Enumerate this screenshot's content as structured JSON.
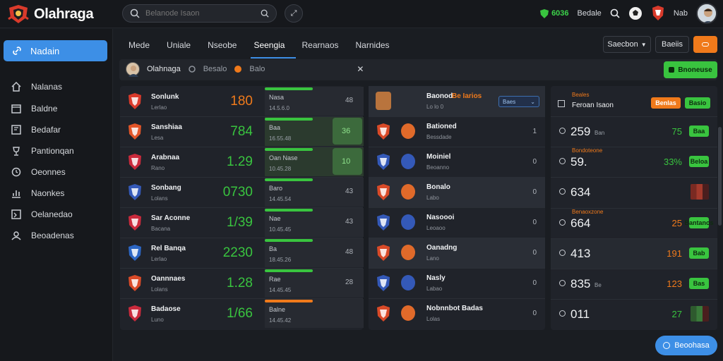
{
  "brand": {
    "name": "Olahraga"
  },
  "search": {
    "placeholder": "Belanode Isaon"
  },
  "header": {
    "coin_value": "6036",
    "label_a": "Bedale",
    "user": "Nab"
  },
  "sidebar": {
    "items": [
      {
        "label": "Nadain",
        "icon": "link-icon"
      },
      {
        "label": "Nalanas",
        "icon": "home-icon"
      },
      {
        "label": "Baldne",
        "icon": "calendar-icon"
      },
      {
        "label": "Bedafar",
        "icon": "bookmark-icon"
      },
      {
        "label": "Pantionqan",
        "icon": "trophy-icon"
      },
      {
        "label": "Oeonnes",
        "icon": "clock-icon"
      },
      {
        "label": "Naonkes",
        "icon": "chart-icon"
      },
      {
        "label": "Oelanedao",
        "icon": "grid-icon"
      },
      {
        "label": "Beoadenas",
        "icon": "user-icon"
      }
    ]
  },
  "tabs": [
    "Mede",
    "Uniale",
    "Nseobe",
    "Seengia",
    "Rearnaos",
    "Narnides"
  ],
  "tab_right": {
    "dropdown": "Saecbon",
    "button": "Baeiis"
  },
  "subbar": {
    "name": "Olahnaga",
    "item1": "Besalo",
    "item2": "Balo",
    "cta": "Bnoneuse"
  },
  "left_panel": {
    "rows": [
      {
        "name": "Sonlunk",
        "sub": "Lerlao",
        "odds": "180",
        "odds_color": "#f07a1b",
        "bar_label": "Nasa",
        "bar_sub": "14.5.6.0",
        "bar_color": "#39c43f",
        "mid": "48",
        "highlight": false
      },
      {
        "name": "Sanshiaa",
        "sub": "Lesa",
        "odds": "784",
        "odds_color": "#39c43f",
        "bar_label": "Baa",
        "bar_sub": "16.55.48",
        "bar_color": "#39c43f",
        "mid": "36",
        "highlight": true
      },
      {
        "name": "Arabnaa",
        "sub": "Rano",
        "odds": "1.29",
        "odds_color": "#39c43f",
        "bar_label": "Oan Nase",
        "bar_sub": "10.45.28",
        "bar_color": "#39c43f",
        "mid": "10",
        "highlight": true
      },
      {
        "name": "Sonbang",
        "sub": "Lolans",
        "odds": "0730",
        "odds_color": "#39c43f",
        "bar_label": "Baro",
        "bar_sub": "14.45.54",
        "bar_color": "#39c43f",
        "mid": "43",
        "highlight": false
      },
      {
        "name": "Sar Aconne",
        "sub": "Bacana",
        "odds": "1/39",
        "odds_color": "#39c43f",
        "bar_label": "Nae",
        "bar_sub": "10.45.45",
        "bar_color": "#39c43f",
        "mid": "43",
        "highlight": false
      },
      {
        "name": "Rel Banqa",
        "sub": "Lerlao",
        "odds": "2230",
        "odds_color": "#39c43f",
        "bar_label": "Ba",
        "bar_sub": "18.45.26",
        "bar_color": "#39c43f",
        "mid": "48",
        "highlight": false
      },
      {
        "name": "Oannnaes",
        "sub": "Lolans",
        "odds": "1.28",
        "odds_color": "#39c43f",
        "bar_label": "Rae",
        "bar_sub": "14.45.45",
        "bar_color": "#39c43f",
        "mid": "28",
        "highlight": false
      },
      {
        "name": "Badaose",
        "sub": "Luno",
        "odds": "1/66",
        "odds_color": "#39c43f",
        "bar_label": "Balne",
        "bar_sub": "14.45.42",
        "bar_color": "#f07a1b",
        "mid": "",
        "highlight": false
      }
    ]
  },
  "mid_panel": {
    "dropdown": "Baes",
    "rows": [
      {
        "title": "Baonod",
        "title2": "Be Iarios",
        "sub": "Lo lo 0",
        "num": "",
        "highlight": true
      },
      {
        "title": "Bationed",
        "sub": "Bessdade",
        "num": "1",
        "highlight": false
      },
      {
        "title": "Moiniel",
        "sub": "Beoanno",
        "num": "0",
        "highlight": false
      },
      {
        "title": "Bonalo",
        "sub": "Labo",
        "num": "0",
        "highlight": true
      },
      {
        "title": "Nasoooi",
        "sub": "Leoaoo",
        "num": "0",
        "highlight": false
      },
      {
        "title": "Oanadng",
        "sub": "Lano",
        "num": "0",
        "highlight": true
      },
      {
        "title": "Nasly",
        "sub": "Labao",
        "num": "0",
        "highlight": false
      },
      {
        "title": "Nobnnbot Badas",
        "sub": "Lolas",
        "num": "0",
        "highlight": false
      }
    ]
  },
  "right_panel": {
    "header": {
      "label": "Beales",
      "title": "Feroan Isaon",
      "btn1": "Benlas",
      "btn2": "Basio"
    },
    "rows": [
      {
        "value": "259",
        "unit": "Ban",
        "right": "75",
        "badge": "Baa",
        "label": ""
      },
      {
        "value": "59.",
        "unit": "",
        "right": "33%",
        "badge": "Beloa",
        "label": "Bondoteone"
      },
      {
        "value": "634",
        "unit": "",
        "right": "",
        "badge": "",
        "label": ""
      },
      {
        "value": "664",
        "unit": "",
        "right": "25",
        "badge": "Bantanos",
        "label": "Benaoxzone"
      },
      {
        "value": "413",
        "unit": "",
        "right": "191",
        "badge": "Bab",
        "label": ""
      },
      {
        "value": "835",
        "unit": "Be",
        "right": "123",
        "badge": "Bas",
        "label": ""
      },
      {
        "value": "011",
        "unit": "",
        "right": "27",
        "badge": "",
        "label": ""
      }
    ]
  },
  "fab": {
    "label": "Beoohasa"
  },
  "colors": {
    "accent": "#3d8fe6",
    "green": "#39c43f",
    "orange": "#f07a1b"
  }
}
